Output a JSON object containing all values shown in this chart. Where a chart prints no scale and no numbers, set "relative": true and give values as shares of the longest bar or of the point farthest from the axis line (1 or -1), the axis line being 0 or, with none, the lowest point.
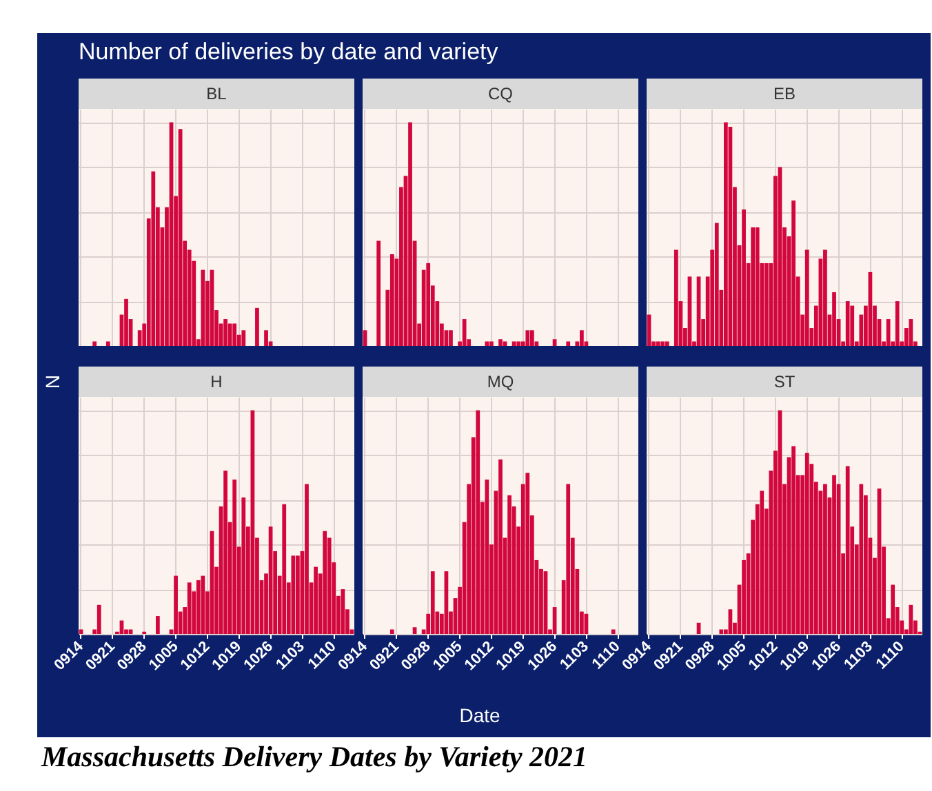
{
  "chart_data": [
    {
      "type": "other",
      "title": "Number of deliveries by date and variety",
      "xlabel": "Date",
      "ylabel": "N",
      "annotations": [
        "Massachusetts Delivery Dates by Variety 2021"
      ]
    },
    {
      "type": "bar",
      "title": "BL",
      "relative": true,
      "grid": true,
      "tick_labels": false,
      "color": "#d2073d",
      "categories": [
        "0914",
        null,
        null,
        null,
        null,
        null,
        null,
        "0921",
        null,
        null,
        null,
        null,
        null,
        null,
        "0928",
        null,
        null,
        null,
        null,
        null,
        null,
        "1005",
        null,
        null,
        null,
        null,
        null,
        null,
        "1012",
        null,
        null,
        null,
        null,
        null,
        null,
        "1019",
        null,
        null,
        null,
        null,
        null,
        null,
        "1026",
        null,
        null,
        null,
        null,
        null,
        null,
        "1103",
        null,
        null,
        null,
        null,
        null,
        null,
        "1110",
        null,
        null,
        null,
        null
      ],
      "values": [
        0,
        0,
        0,
        0.02,
        0,
        0,
        0.02,
        0,
        0,
        0.14,
        0.21,
        0.12,
        0,
        0.07,
        0.1,
        0.57,
        0.78,
        0.62,
        0.53,
        0.62,
        1,
        0.67,
        0.97,
        0.47,
        0.43,
        0.38,
        0.03,
        0.34,
        0.29,
        0.34,
        0.16,
        0.1,
        0.12,
        0.1,
        0.1,
        0.05,
        0.07,
        0,
        0,
        0.17,
        0,
        0.07,
        0.02,
        0,
        0,
        0,
        0,
        0,
        0,
        0,
        0,
        0,
        0,
        0,
        0,
        0,
        0,
        0,
        0,
        0,
        0
      ]
    },
    {
      "type": "bar",
      "title": "CQ",
      "relative": true,
      "grid": true,
      "tick_labels": false,
      "color": "#d2073d",
      "categories": [
        "0914",
        null,
        null,
        null,
        null,
        null,
        null,
        "0921",
        null,
        null,
        null,
        null,
        null,
        null,
        "0928",
        null,
        null,
        null,
        null,
        null,
        null,
        "1005",
        null,
        null,
        null,
        null,
        null,
        null,
        "1012",
        null,
        null,
        null,
        null,
        null,
        null,
        "1019",
        null,
        null,
        null,
        null,
        null,
        null,
        "1026",
        null,
        null,
        null,
        null,
        null,
        null,
        "1103",
        null,
        null,
        null,
        null,
        null,
        null,
        "1110",
        null,
        null,
        null,
        null
      ],
      "values": [
        0.07,
        0,
        0,
        0.47,
        0,
        0.25,
        0.41,
        0.39,
        0.71,
        0.76,
        1,
        0.47,
        0.1,
        0.34,
        0.37,
        0.27,
        0.2,
        0.1,
        0.07,
        0.07,
        0,
        0.02,
        0.12,
        0.03,
        0,
        0,
        0,
        0.02,
        0.02,
        0,
        0.03,
        0.02,
        0,
        0.02,
        0.02,
        0.02,
        0.07,
        0.07,
        0.02,
        0,
        0,
        0,
        0.03,
        0,
        0,
        0.02,
        0,
        0.02,
        0.07,
        0.02,
        0,
        0,
        0,
        0,
        0,
        0,
        0,
        0,
        0,
        0,
        0
      ]
    },
    {
      "type": "bar",
      "title": "EB",
      "relative": true,
      "grid": true,
      "tick_labels": false,
      "color": "#d2073d",
      "categories": [
        "0914",
        null,
        null,
        null,
        null,
        null,
        null,
        "0921",
        null,
        null,
        null,
        null,
        null,
        null,
        "0928",
        null,
        null,
        null,
        null,
        null,
        null,
        "1005",
        null,
        null,
        null,
        null,
        null,
        null,
        "1012",
        null,
        null,
        null,
        null,
        null,
        null,
        "1019",
        null,
        null,
        null,
        null,
        null,
        null,
        "1026",
        null,
        null,
        null,
        null,
        null,
        null,
        "1103",
        null,
        null,
        null,
        null,
        null,
        null,
        "1110",
        null,
        null,
        null,
        null
      ],
      "values": [
        0.14,
        0.02,
        0.02,
        0.02,
        0.02,
        0,
        0.43,
        0.2,
        0.08,
        0.31,
        0.02,
        0.31,
        0.12,
        0.31,
        0.43,
        0.55,
        0.25,
        1,
        0.98,
        0.71,
        0.45,
        0.61,
        0.37,
        0.53,
        0.53,
        0.37,
        0.37,
        0.37,
        0.76,
        0.8,
        0.53,
        0.49,
        0.65,
        0.31,
        0.14,
        0.43,
        0.08,
        0.18,
        0.39,
        0.43,
        0.14,
        0.24,
        0.12,
        0.02,
        0.2,
        0.18,
        0.02,
        0.14,
        0.18,
        0.33,
        0.18,
        0.12,
        0.02,
        0.12,
        0.02,
        0.2,
        0.02,
        0.08,
        0.12,
        0.02,
        0
      ]
    },
    {
      "type": "bar",
      "title": "H",
      "relative": true,
      "grid": true,
      "tick_labels": "x",
      "color": "#d2073d",
      "categories": [
        "0914",
        null,
        null,
        null,
        null,
        null,
        null,
        "0921",
        null,
        null,
        null,
        null,
        null,
        null,
        "0928",
        null,
        null,
        null,
        null,
        null,
        null,
        "1005",
        null,
        null,
        null,
        null,
        null,
        null,
        "1012",
        null,
        null,
        null,
        null,
        null,
        null,
        "1019",
        null,
        null,
        null,
        null,
        null,
        null,
        "1026",
        null,
        null,
        null,
        null,
        null,
        null,
        "1103",
        null,
        null,
        null,
        null,
        null,
        null,
        "1110",
        null,
        null,
        null,
        null
      ],
      "values": [
        0.02,
        0,
        0,
        0.02,
        0.13,
        0,
        0,
        0,
        0.01,
        0.06,
        0.02,
        0.02,
        0,
        0,
        0.01,
        0,
        0,
        0.08,
        0,
        0,
        0.02,
        0.26,
        0.1,
        0.12,
        0.23,
        0.19,
        0.24,
        0.26,
        0.19,
        0.46,
        0.3,
        0.57,
        0.73,
        0.5,
        0.69,
        0.39,
        0.61,
        0.48,
        1,
        0.43,
        0.24,
        0.27,
        0.48,
        0.37,
        0.26,
        0.58,
        0.23,
        0.35,
        0.35,
        0.37,
        0.67,
        0.23,
        0.3,
        0.27,
        0.46,
        0.43,
        0.32,
        0.17,
        0.2,
        0.11,
        0.02
      ]
    },
    {
      "type": "bar",
      "title": "MQ",
      "relative": true,
      "grid": true,
      "tick_labels": "x",
      "color": "#d2073d",
      "categories": [
        "0914",
        null,
        null,
        null,
        null,
        null,
        null,
        "0921",
        null,
        null,
        null,
        null,
        null,
        null,
        "0928",
        null,
        null,
        null,
        null,
        null,
        null,
        "1005",
        null,
        null,
        null,
        null,
        null,
        null,
        "1012",
        null,
        null,
        null,
        null,
        null,
        null,
        "1019",
        null,
        null,
        null,
        null,
        null,
        null,
        "1026",
        null,
        null,
        null,
        null,
        null,
        null,
        "1103",
        null,
        null,
        null,
        null,
        null,
        null,
        "1110",
        null,
        null,
        null,
        null
      ],
      "values": [
        0,
        0,
        0,
        0,
        0,
        0,
        0.02,
        0,
        0,
        0,
        0,
        0.03,
        0,
        0.02,
        0.09,
        0.28,
        0.1,
        0.09,
        0.28,
        0.1,
        0.16,
        0.21,
        0.5,
        0.67,
        0.88,
        1,
        0.59,
        0.69,
        0.4,
        0.64,
        0.78,
        0.43,
        0.62,
        0.57,
        0.48,
        0.67,
        0.72,
        0.53,
        0.33,
        0.29,
        0.28,
        0.02,
        0.12,
        0,
        0.24,
        0.67,
        0.43,
        0.29,
        0.1,
        0.09,
        0,
        0,
        0,
        0,
        0,
        0.02,
        0,
        0,
        0,
        0,
        0
      ]
    },
    {
      "type": "bar",
      "title": "ST",
      "relative": true,
      "grid": true,
      "tick_labels": "x",
      "color": "#d2073d",
      "categories": [
        "0914",
        null,
        null,
        null,
        null,
        null,
        null,
        "0921",
        null,
        null,
        null,
        null,
        null,
        null,
        "0928",
        null,
        null,
        null,
        null,
        null,
        null,
        "1005",
        null,
        null,
        null,
        null,
        null,
        null,
        "1012",
        null,
        null,
        null,
        null,
        null,
        null,
        "1019",
        null,
        null,
        null,
        null,
        null,
        null,
        "1026",
        null,
        null,
        null,
        null,
        null,
        null,
        "1103",
        null,
        null,
        null,
        null,
        null,
        null,
        "1110",
        null,
        null,
        null,
        null
      ],
      "values": [
        0,
        0,
        0,
        0,
        0,
        0,
        0,
        0,
        0,
        0,
        0,
        0.05,
        0,
        0,
        0,
        0,
        0.02,
        0.02,
        0.11,
        0.05,
        0.22,
        0.33,
        0.36,
        0.51,
        0.58,
        0.64,
        0.56,
        0.73,
        0.82,
        1,
        0.67,
        0.79,
        0.84,
        0.71,
        0.71,
        0.81,
        0.76,
        0.68,
        0.64,
        0.67,
        0.61,
        0.71,
        0.67,
        0.36,
        0.75,
        0.48,
        0.4,
        0.67,
        0.62,
        0.43,
        0.34,
        0.65,
        0.39,
        0.07,
        0.22,
        0.12,
        0.06,
        0.02,
        0.13,
        0.06,
        0.01
      ]
    }
  ]
}
